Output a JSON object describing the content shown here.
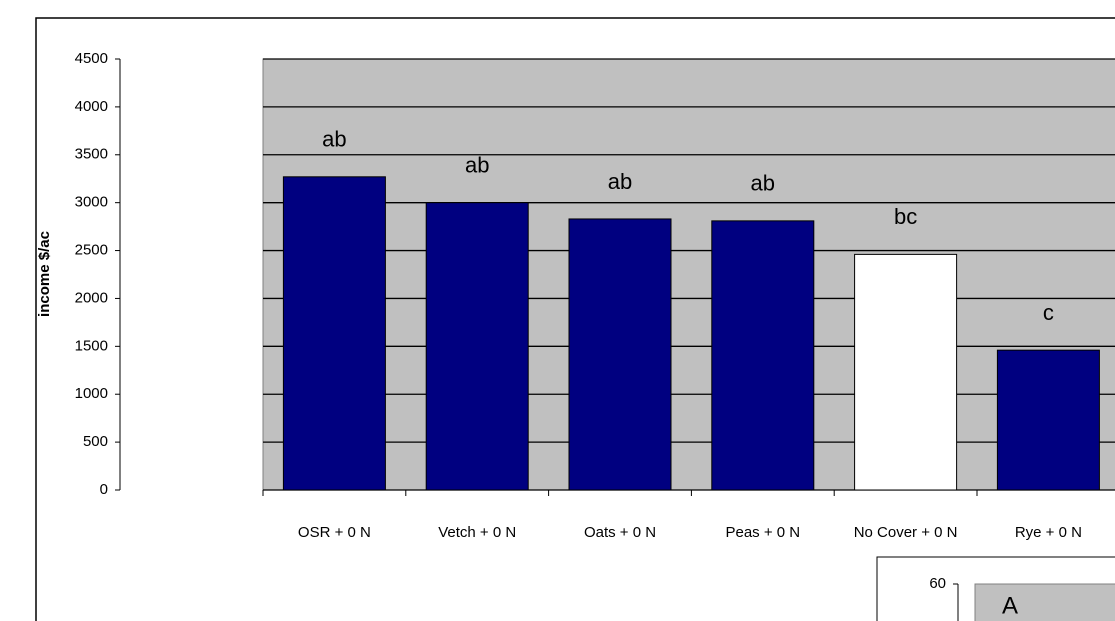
{
  "chart_data": {
    "type": "bar",
    "y_label": "income $/ac",
    "categories": [
      "OSR + 0 N",
      "Vetch + 0 N",
      "Oats + 0 N",
      "Peas + 0 N",
      "No Cover + 0 N",
      "Rye + 0 N"
    ],
    "values": [
      3270,
      3000,
      2830,
      2810,
      2460,
      1460
    ],
    "colors": [
      "#000080",
      "#000080",
      "#000080",
      "#000080",
      "#ffffff",
      "#000080"
    ],
    "annotations": [
      "ab",
      "ab",
      "ab",
      "ab",
      "bc",
      "c"
    ],
    "ylim": [
      0,
      4500
    ],
    "yticks": [
      0,
      500,
      1000,
      1500,
      2000,
      2500,
      3000,
      3500,
      4000,
      4500
    ],
    "grid": true,
    "plot_background": "#c0c0c0"
  },
  "inset": {
    "ytick": 60,
    "label": "A"
  }
}
